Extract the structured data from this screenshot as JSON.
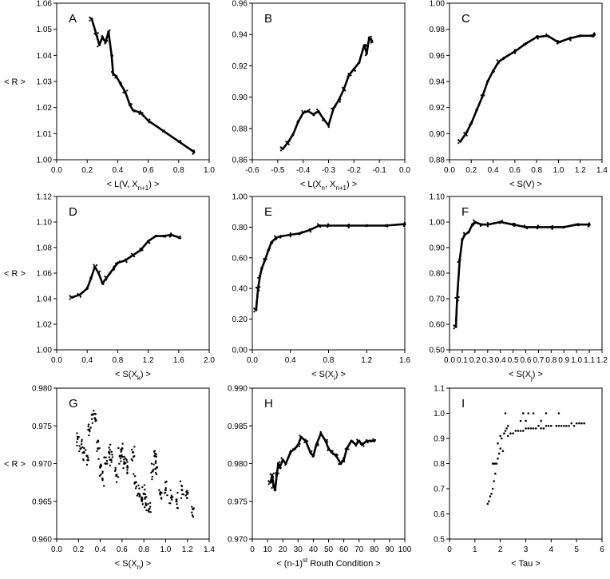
{
  "colors": {
    "background": "#ffffff",
    "ink": "#000000"
  },
  "chart_data": [
    {
      "type": "line",
      "id": "A",
      "panel_label": "A",
      "xlabel": "< L(V, X",
      "xsub": "n+1",
      "xlabel_tail": ") >",
      "ylabel": "< R >",
      "xlim": [
        0.0,
        1.0
      ],
      "ylim": [
        1.0,
        1.06
      ],
      "xticks": [
        "0.0",
        "0.2",
        "0.4",
        "0.6",
        "0.8",
        "1.0"
      ],
      "yticks": [
        "1.00",
        "1.01",
        "1.02",
        "1.03",
        "1.04",
        "1.05",
        "1.06"
      ],
      "series": [
        {
          "x": [
            0.23,
            0.26,
            0.28,
            0.3,
            0.32,
            0.34,
            0.36,
            0.37,
            0.39,
            0.42,
            0.45,
            0.48,
            0.5,
            0.55,
            0.6,
            0.7,
            0.8,
            0.9
          ],
          "y": [
            1.054,
            1.048,
            1.044,
            1.047,
            1.045,
            1.049,
            1.04,
            1.033,
            1.032,
            1.029,
            1.026,
            1.021,
            1.019,
            1.018,
            1.015,
            1.011,
            1.007,
            1.003
          ]
        }
      ]
    },
    {
      "type": "line",
      "id": "B",
      "panel_label": "B",
      "xlabel": "< L(X",
      "xsub": "n",
      "xlabel_mid": ", X",
      "xsub2": "n+1",
      "xlabel_tail": ") >",
      "ylabel": "",
      "xlim": [
        -0.6,
        0.0
      ],
      "ylim": [
        0.86,
        0.96
      ],
      "xticks": [
        "-0.6",
        "-0.5",
        "-0.4",
        "-0.3",
        "-0.2",
        "-0.1",
        "0.0"
      ],
      "yticks": [
        "0.86",
        "0.88",
        "0.90",
        "0.92",
        "0.94",
        "0.96"
      ],
      "series": [
        {
          "x": [
            -0.48,
            -0.46,
            -0.44,
            -0.42,
            -0.4,
            -0.38,
            -0.36,
            -0.34,
            -0.32,
            -0.3,
            -0.28,
            -0.26,
            -0.24,
            -0.22,
            -0.2,
            -0.18,
            -0.16,
            -0.15,
            -0.14,
            -0.13
          ],
          "y": [
            0.867,
            0.871,
            0.876,
            0.884,
            0.89,
            0.891,
            0.889,
            0.891,
            0.886,
            0.882,
            0.893,
            0.898,
            0.905,
            0.914,
            0.918,
            0.922,
            0.933,
            0.928,
            0.938,
            0.936
          ]
        }
      ]
    },
    {
      "type": "line",
      "id": "C",
      "panel_label": "C",
      "xlabel": "< S(V) >",
      "ylabel": "",
      "xlim": [
        0.0,
        1.4
      ],
      "ylim": [
        0.88,
        1.0
      ],
      "xticks": [
        "0.0",
        "0.2",
        "0.4",
        "0.6",
        "0.8",
        "1.0",
        "1.2",
        "1.4"
      ],
      "yticks": [
        "0.88",
        "0.90",
        "0.92",
        "0.94",
        "0.96",
        "0.98",
        "1.00"
      ],
      "series": [
        {
          "x": [
            0.1,
            0.15,
            0.2,
            0.25,
            0.3,
            0.35,
            0.4,
            0.45,
            0.5,
            0.6,
            0.7,
            0.8,
            0.9,
            1.0,
            1.1,
            1.2,
            1.3,
            1.33
          ],
          "y": [
            0.894,
            0.9,
            0.908,
            0.918,
            0.928,
            0.94,
            0.948,
            0.955,
            0.958,
            0.963,
            0.969,
            0.974,
            0.975,
            0.97,
            0.973,
            0.975,
            0.975,
            0.976
          ]
        }
      ]
    },
    {
      "type": "line",
      "id": "D",
      "panel_label": "D",
      "xlabel": "< S(X",
      "xsub": "k",
      "xlabel_tail": ") >",
      "ylabel": "< R >",
      "xlim": [
        0.0,
        2.0
      ],
      "ylim": [
        1.0,
        1.12
      ],
      "xticks": [
        "0.0",
        "0.4",
        "0.8",
        "1.2",
        "1.6",
        "2.0"
      ],
      "yticks": [
        "1.00",
        "1.02",
        "1.04",
        "1.06",
        "1.08",
        "1.10",
        "1.12"
      ],
      "series": [
        {
          "x": [
            0.2,
            0.3,
            0.4,
            0.45,
            0.5,
            0.55,
            0.6,
            0.65,
            0.7,
            0.75,
            0.8,
            0.9,
            1.0,
            1.1,
            1.2,
            1.3,
            1.4,
            1.5,
            1.6
          ],
          "y": [
            1.041,
            1.043,
            1.048,
            1.056,
            1.065,
            1.06,
            1.052,
            1.056,
            1.06,
            1.064,
            1.068,
            1.07,
            1.074,
            1.078,
            1.085,
            1.089,
            1.089,
            1.09,
            1.088
          ]
        }
      ]
    },
    {
      "type": "line",
      "id": "E",
      "panel_label": "E",
      "xlabel": "< S(X",
      "xsub": "i",
      "xlabel_tail": ") >",
      "ylabel": "",
      "xlim": [
        0.0,
        1.6
      ],
      "ylim": [
        0.0,
        1.0
      ],
      "xticks": [
        "0.0",
        "0.4",
        "0.8",
        "1.2",
        "1.6"
      ],
      "yticks": [
        "0.00",
        "0.20",
        "0.40",
        "0.60",
        "0.80",
        "1.00"
      ],
      "series": [
        {
          "x": [
            0.04,
            0.06,
            0.08,
            0.1,
            0.13,
            0.17,
            0.2,
            0.25,
            0.3,
            0.4,
            0.5,
            0.6,
            0.7,
            0.8,
            1.0,
            1.2,
            1.4,
            1.6
          ],
          "y": [
            0.26,
            0.4,
            0.48,
            0.53,
            0.58,
            0.65,
            0.7,
            0.73,
            0.74,
            0.75,
            0.76,
            0.78,
            0.81,
            0.81,
            0.81,
            0.81,
            0.81,
            0.82
          ]
        }
      ]
    },
    {
      "type": "line",
      "id": "F",
      "panel_label": "F",
      "xlabel": "< S(X",
      "xsub": "j",
      "xlabel_tail": ") >",
      "ylabel": "",
      "xlim": [
        0.0,
        1.2
      ],
      "ylim": [
        0.5,
        1.1
      ],
      "xticks": [
        "0.0",
        "0.1",
        "0.2",
        "0.3",
        "0.4",
        "0.5",
        "0.6",
        "0.7",
        "0.8",
        "0.9",
        "1.0",
        "1.1",
        "1.2"
      ],
      "yticks": [
        "0.50",
        "0.60",
        "0.70",
        "0.80",
        "0.90",
        "1.00",
        "1.10"
      ],
      "series": [
        {
          "x": [
            0.05,
            0.06,
            0.08,
            0.1,
            0.12,
            0.15,
            0.18,
            0.2,
            0.25,
            0.3,
            0.4,
            0.5,
            0.6,
            0.7,
            0.8,
            0.9,
            1.0,
            1.1
          ],
          "y": [
            0.59,
            0.7,
            0.85,
            0.93,
            0.95,
            0.96,
            0.99,
            1.0,
            0.99,
            0.99,
            1.0,
            0.99,
            0.98,
            0.98,
            0.98,
            0.98,
            0.99,
            0.99
          ]
        }
      ]
    },
    {
      "type": "scatter",
      "id": "G",
      "panel_label": "G",
      "xlabel": "< S(X",
      "xsub": "n",
      "xlabel_tail": ") >",
      "ylabel": "< R >",
      "xlim": [
        0.0,
        1.4
      ],
      "ylim": [
        0.96,
        0.98
      ],
      "xticks": [
        "0.0",
        "0.2",
        "0.4",
        "0.6",
        "0.8",
        "1.0",
        "1.2",
        "1.4"
      ],
      "yticks": [
        "0.960",
        "0.965",
        "0.970",
        "0.975",
        "0.980"
      ],
      "series": [
        {
          "x": [
            0.2,
            0.22,
            0.25,
            0.28,
            0.3,
            0.33,
            0.35,
            0.38,
            0.4,
            0.42,
            0.45,
            0.48,
            0.5,
            0.55,
            0.58,
            0.6,
            0.62,
            0.65,
            0.7,
            0.72,
            0.75,
            0.78,
            0.8,
            0.82,
            0.85,
            0.88,
            0.9,
            0.92,
            0.95,
            1.0,
            1.05,
            1.1,
            1.15,
            1.2,
            1.25
          ],
          "y": [
            0.9735,
            0.972,
            0.9715,
            0.971,
            0.9745,
            0.9765,
            0.976,
            0.972,
            0.9695,
            0.968,
            0.97,
            0.9715,
            0.9705,
            0.9685,
            0.971,
            0.972,
            0.97,
            0.9695,
            0.9715,
            0.9675,
            0.966,
            0.9655,
            0.966,
            0.9645,
            0.964,
            0.969,
            0.971,
            0.9695,
            0.966,
            0.9665,
            0.9655,
            0.965,
            0.9665,
            0.966,
            0.964
          ]
        }
      ]
    },
    {
      "type": "line",
      "id": "H",
      "panel_label": "H",
      "xlabel": "< (n-1)",
      "xsup": "st",
      "xlabel_tail": " Routh Condition >",
      "ylabel": "",
      "xlim": [
        0,
        100
      ],
      "ylim": [
        0.97,
        0.99
      ],
      "xticks": [
        "0",
        "10",
        "20",
        "30",
        "40",
        "50",
        "60",
        "70",
        "80",
        "90",
        "100"
      ],
      "yticks": [
        "0.970",
        "0.975",
        "0.980",
        "0.985",
        "0.990"
      ],
      "series": [
        {
          "x": [
            12,
            13,
            14,
            15,
            16,
            17,
            18,
            20,
            22,
            25,
            28,
            30,
            32,
            35,
            38,
            40,
            42,
            45,
            48,
            50,
            52,
            55,
            58,
            60,
            62,
            65,
            68,
            70,
            72,
            75,
            78,
            80
          ],
          "y": [
            0.9775,
            0.9785,
            0.977,
            0.9765,
            0.9785,
            0.98,
            0.9795,
            0.9805,
            0.98,
            0.9815,
            0.982,
            0.9825,
            0.9835,
            0.983,
            0.9815,
            0.981,
            0.9825,
            0.984,
            0.983,
            0.982,
            0.9815,
            0.981,
            0.98,
            0.9805,
            0.982,
            0.983,
            0.9825,
            0.983,
            0.9825,
            0.983,
            0.983,
            0.983
          ]
        }
      ]
    },
    {
      "type": "scatter",
      "id": "I",
      "panel_label": "I",
      "xlabel": "< Tau >",
      "ylabel": "",
      "xlim": [
        0,
        6
      ],
      "ylim": [
        0.5,
        1.1
      ],
      "xticks": [
        "0",
        "1",
        "2",
        "3",
        "4",
        "5",
        "6"
      ],
      "yticks": [
        "0.5",
        "0.6",
        "0.7",
        "0.8",
        "0.9",
        "1.0",
        "1.1"
      ],
      "series": [
        {
          "x": [
            1.5,
            1.55,
            1.6,
            1.65,
            1.7,
            1.7,
            1.75,
            1.75,
            1.8,
            1.8,
            1.85,
            1.9,
            1.9,
            1.95,
            2.0,
            2.0,
            2.05,
            2.1,
            2.15,
            2.2,
            2.25,
            2.3,
            2.3,
            2.4,
            2.5,
            2.6,
            2.7,
            2.8,
            2.8,
            2.9,
            3.0,
            3.0,
            3.1,
            3.2,
            3.3,
            3.4,
            3.5,
            3.6,
            3.6,
            3.7,
            3.8,
            3.9,
            4.0,
            4.2,
            4.3,
            4.4,
            4.5,
            4.6,
            4.7,
            4.8,
            4.9,
            5.0,
            5.1,
            5.2,
            5.3,
            2.2,
            2.9,
            3.1,
            3.3,
            3.8,
            4.3
          ],
          "y": [
            0.64,
            0.65,
            0.67,
            0.68,
            0.7,
            0.8,
            0.73,
            0.8,
            0.76,
            0.8,
            0.8,
            0.82,
            0.88,
            0.84,
            0.86,
            0.91,
            0.9,
            0.85,
            0.92,
            0.93,
            0.94,
            0.91,
            0.95,
            0.92,
            0.92,
            0.93,
            0.93,
            0.93,
            0.97,
            0.93,
            0.94,
            0.97,
            0.94,
            0.94,
            0.94,
            0.94,
            0.95,
            0.94,
            0.97,
            0.94,
            0.95,
            0.95,
            0.95,
            0.95,
            0.95,
            0.95,
            0.95,
            0.95,
            0.95,
            0.96,
            0.95,
            0.96,
            0.96,
            0.96,
            0.96,
            1.0,
            1.0,
            1.0,
            1.0,
            1.0,
            1.0
          ]
        }
      ]
    }
  ]
}
